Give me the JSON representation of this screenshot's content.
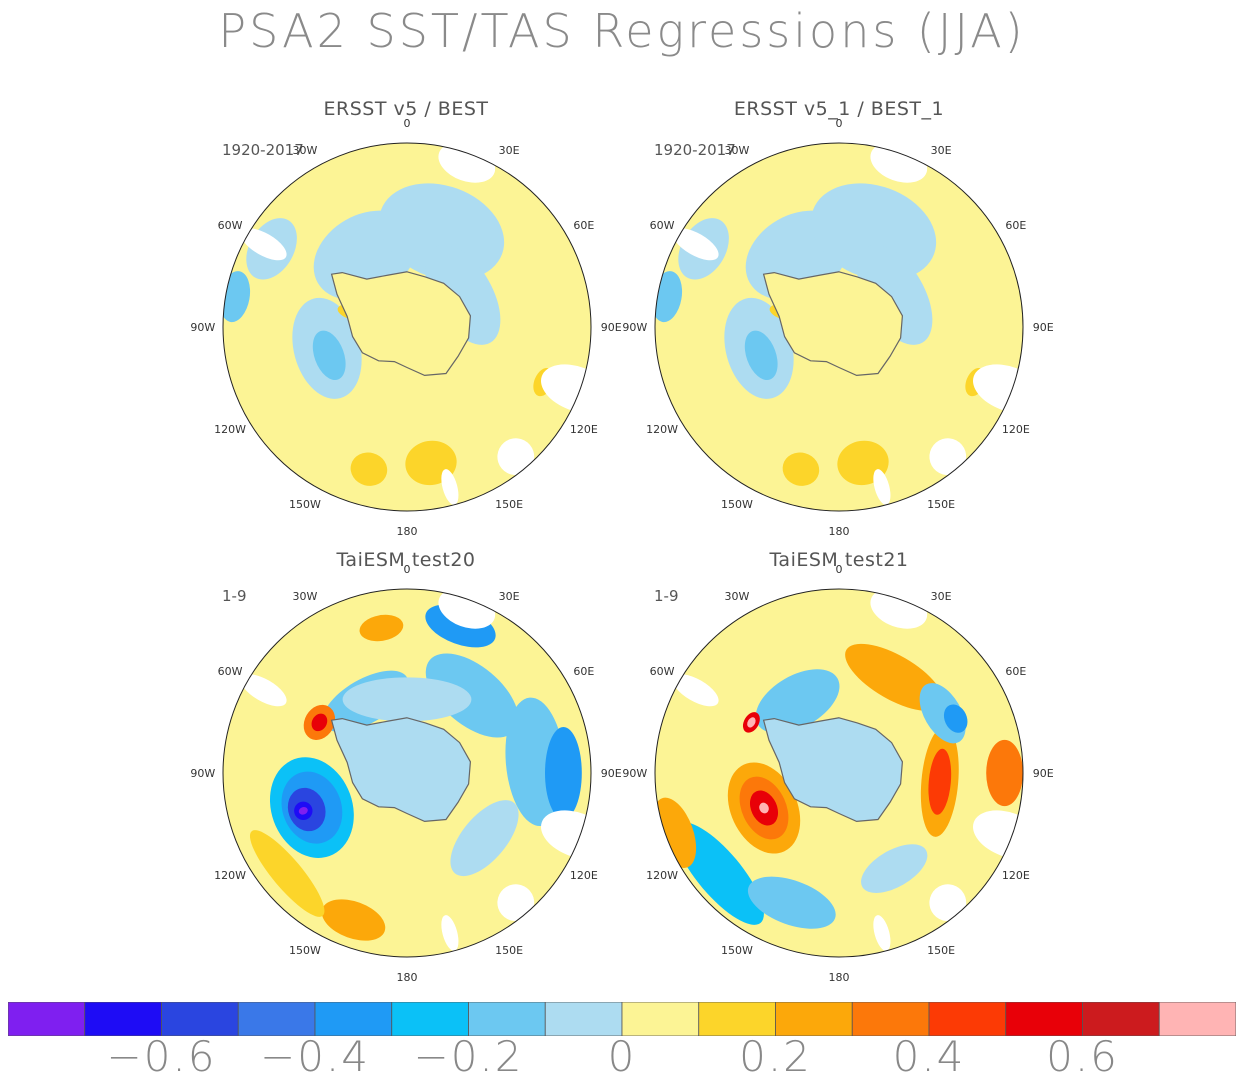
{
  "title": "PSA2 SST/TAS Regressions (JJA)",
  "chart_data": [
    {
      "type": "heatmap",
      "projection": "south-polar-stereographic",
      "title": "ERSST v5 / BEST",
      "period": "1920-2017",
      "lon_labels": [
        "0",
        "30E",
        "60E",
        "90E",
        "120E",
        "150E",
        "180",
        "150W",
        "120W",
        "90W",
        "60W",
        "30W"
      ],
      "dominant_range": [
        0,
        0.1
      ],
      "pattern": "weak positive (0 to 0.1) over most of ocean; weak negative (-0.1 to 0) east of Antarctic Peninsula and in Amundsen/Bellingshausen sector; 0.1-0.2 patches south of Australia/New Zealand"
    },
    {
      "type": "heatmap",
      "projection": "south-polar-stereographic",
      "title": "ERSST v5_1 / BEST_1",
      "period": "1920-2017",
      "lon_labels": [
        "0",
        "30E",
        "60E",
        "90E",
        "120E",
        "150E",
        "180",
        "150W",
        "120W",
        "90W",
        "60W",
        "30W"
      ],
      "dominant_range": [
        0,
        0.1
      ],
      "pattern": "nearly identical to ERSST v5 / BEST"
    },
    {
      "type": "heatmap",
      "projection": "south-polar-stereographic",
      "title": "TaiESM test20",
      "period": "1-9",
      "lon_labels": [
        "0",
        "30E",
        "60E",
        "90E",
        "120E",
        "150E",
        "180",
        "150W",
        "120W",
        "90W",
        "60W",
        "30W"
      ],
      "min_approx": -0.7,
      "max_approx": 0.5,
      "pattern": "strong negative (~-0.6) centred near 110W; negative band 60E-110E; positive near Antarctic Peninsula and south of New Zealand"
    },
    {
      "type": "heatmap",
      "projection": "south-polar-stereographic",
      "title": "TaiESM test21",
      "period": "1-9",
      "lon_labels": [
        "0",
        "30E",
        "60E",
        "90E",
        "120E",
        "150E",
        "180",
        "150W",
        "120W",
        "90W",
        "60W",
        "30W"
      ],
      "min_approx": -0.4,
      "max_approx": 0.7,
      "pattern": "strong positive (~0.6) Bellingshausen/Amundsen seas and 80E-110E; negative off Pacific sector 120W-150W and near 60E"
    }
  ],
  "colorbar": {
    "colors": [
      "#7f1ff0",
      "#1e0cf5",
      "#2a45e0",
      "#3a78e8",
      "#1f9af5",
      "#0bc1f7",
      "#6cc8f1",
      "#addcf1",
      "#fcf495",
      "#fcd52a",
      "#fca80a",
      "#fc780a",
      "#fc3a05",
      "#e80008",
      "#cc1b1e",
      "#ffb4b4"
    ],
    "bounds": [
      -0.7,
      -0.6,
      -0.5,
      -0.4,
      -0.3,
      -0.2,
      -0.1,
      0,
      0.1,
      0.2,
      0.3,
      0.4,
      0.5,
      0.6,
      0.7
    ],
    "tick_labels": [
      "−0.6",
      "−0.4",
      "−0.2",
      "0",
      "0.2",
      "0.4",
      "0.6"
    ]
  }
}
